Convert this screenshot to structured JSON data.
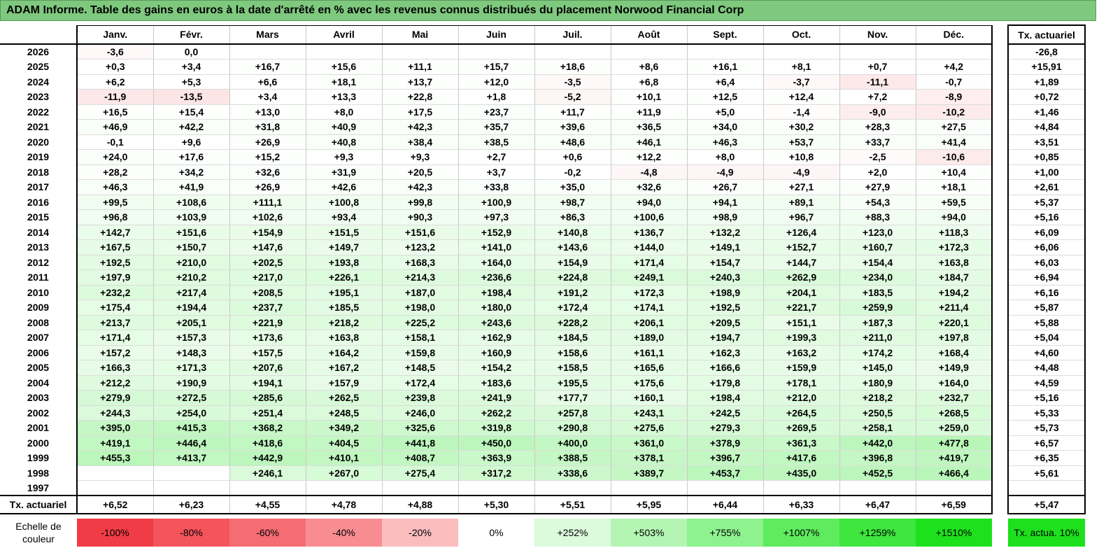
{
  "title": "ADAM Informe. Table des gains en euros à la date d'arrêté en % avec les revenus connus distribués du placement Norwood Financial Corp",
  "headers": {
    "months": [
      "Janv.",
      "Févr.",
      "Mars",
      "Avril",
      "Mai",
      "Juin",
      "Juil.",
      "Août",
      "Sept.",
      "Oct.",
      "Nov.",
      "Déc."
    ],
    "tx": "Tx. actuariel"
  },
  "rows": [
    {
      "year": "2026",
      "values": [
        "-3,6",
        "0,0",
        "",
        "",
        "",
        "",
        "",
        "",
        "",
        "",
        "",
        ""
      ],
      "tx": "-26,8"
    },
    {
      "year": "2025",
      "values": [
        "+0,3",
        "+3,4",
        "+16,7",
        "+15,6",
        "+11,1",
        "+15,7",
        "+18,6",
        "+8,6",
        "+16,1",
        "+8,1",
        "+0,7",
        "+4,2"
      ],
      "tx": "+15,91"
    },
    {
      "year": "2024",
      "values": [
        "+6,2",
        "+5,3",
        "+6,6",
        "+18,1",
        "+13,7",
        "+12,0",
        "-3,5",
        "+6,8",
        "+6,4",
        "-3,7",
        "-11,1",
        "-0,7"
      ],
      "tx": "+1,89"
    },
    {
      "year": "2023",
      "values": [
        "-11,9",
        "-13,5",
        "+3,4",
        "+13,3",
        "+22,8",
        "+1,8",
        "-5,2",
        "+10,1",
        "+12,5",
        "+12,4",
        "+7,2",
        "-8,9"
      ],
      "tx": "+0,72"
    },
    {
      "year": "2022",
      "values": [
        "+16,5",
        "+15,4",
        "+13,0",
        "+8,0",
        "+17,5",
        "+23,7",
        "+11,7",
        "+11,9",
        "+5,0",
        "-1,4",
        "-9,0",
        "-10,2"
      ],
      "tx": "+1,46"
    },
    {
      "year": "2021",
      "values": [
        "+46,9",
        "+42,2",
        "+31,8",
        "+40,9",
        "+42,3",
        "+35,7",
        "+39,6",
        "+36,5",
        "+34,0",
        "+30,2",
        "+28,3",
        "+27,5"
      ],
      "tx": "+4,84"
    },
    {
      "year": "2020",
      "values": [
        "-0,1",
        "+9,6",
        "+26,9",
        "+40,8",
        "+38,4",
        "+38,5",
        "+48,6",
        "+46,1",
        "+46,3",
        "+53,7",
        "+33,7",
        "+41,4"
      ],
      "tx": "+3,51"
    },
    {
      "year": "2019",
      "values": [
        "+24,0",
        "+17,6",
        "+15,2",
        "+9,3",
        "+9,3",
        "+2,7",
        "+0,6",
        "+12,2",
        "+8,0",
        "+10,8",
        "-2,5",
        "-10,6"
      ],
      "tx": "+0,85"
    },
    {
      "year": "2018",
      "values": [
        "+28,2",
        "+34,2",
        "+32,6",
        "+31,9",
        "+20,5",
        "+3,7",
        "-0,2",
        "-4,8",
        "-4,9",
        "-4,9",
        "+2,0",
        "+10,4"
      ],
      "tx": "+1,00"
    },
    {
      "year": "2017",
      "values": [
        "+46,3",
        "+41,9",
        "+26,9",
        "+42,6",
        "+42,3",
        "+33,8",
        "+35,0",
        "+32,6",
        "+26,7",
        "+27,1",
        "+27,9",
        "+18,1"
      ],
      "tx": "+2,61"
    },
    {
      "year": "2016",
      "values": [
        "+99,5",
        "+108,6",
        "+111,1",
        "+100,8",
        "+99,8",
        "+100,9",
        "+98,7",
        "+94,0",
        "+94,1",
        "+89,1",
        "+54,3",
        "+59,5"
      ],
      "tx": "+5,37"
    },
    {
      "year": "2015",
      "values": [
        "+96,8",
        "+103,9",
        "+102,6",
        "+93,4",
        "+90,3",
        "+97,3",
        "+86,3",
        "+100,6",
        "+98,9",
        "+96,7",
        "+88,3",
        "+94,0"
      ],
      "tx": "+5,16"
    },
    {
      "year": "2014",
      "values": [
        "+142,7",
        "+151,6",
        "+154,9",
        "+151,5",
        "+151,6",
        "+152,9",
        "+140,8",
        "+136,7",
        "+132,2",
        "+126,4",
        "+123,0",
        "+118,3"
      ],
      "tx": "+6,09"
    },
    {
      "year": "2013",
      "values": [
        "+167,5",
        "+150,7",
        "+147,6",
        "+149,7",
        "+123,2",
        "+141,0",
        "+143,6",
        "+144,0",
        "+149,1",
        "+152,7",
        "+160,7",
        "+172,3"
      ],
      "tx": "+6,06"
    },
    {
      "year": "2012",
      "values": [
        "+192,5",
        "+210,0",
        "+202,5",
        "+193,8",
        "+168,3",
        "+164,0",
        "+154,9",
        "+171,4",
        "+154,7",
        "+144,7",
        "+154,4",
        "+163,8"
      ],
      "tx": "+6,03"
    },
    {
      "year": "2011",
      "values": [
        "+197,9",
        "+210,2",
        "+217,0",
        "+226,1",
        "+214,3",
        "+236,6",
        "+224,8",
        "+249,1",
        "+240,3",
        "+262,9",
        "+234,0",
        "+184,7"
      ],
      "tx": "+6,94"
    },
    {
      "year": "2010",
      "values": [
        "+232,2",
        "+217,4",
        "+208,5",
        "+195,1",
        "+187,0",
        "+198,4",
        "+191,2",
        "+172,3",
        "+198,9",
        "+204,1",
        "+183,5",
        "+194,2"
      ],
      "tx": "+6,16"
    },
    {
      "year": "2009",
      "values": [
        "+175,4",
        "+194,4",
        "+237,7",
        "+185,5",
        "+198,0",
        "+180,0",
        "+172,4",
        "+174,1",
        "+192,5",
        "+221,7",
        "+259,9",
        "+211,4"
      ],
      "tx": "+5,87"
    },
    {
      "year": "2008",
      "values": [
        "+213,7",
        "+205,1",
        "+221,9",
        "+218,2",
        "+225,2",
        "+243,6",
        "+228,2",
        "+206,1",
        "+209,5",
        "+151,1",
        "+187,3",
        "+220,1"
      ],
      "tx": "+5,88"
    },
    {
      "year": "2007",
      "values": [
        "+171,4",
        "+157,3",
        "+173,6",
        "+163,8",
        "+158,1",
        "+162,9",
        "+184,5",
        "+189,0",
        "+194,7",
        "+199,3",
        "+211,0",
        "+197,8"
      ],
      "tx": "+5,04"
    },
    {
      "year": "2006",
      "values": [
        "+157,2",
        "+148,3",
        "+157,5",
        "+164,2",
        "+159,8",
        "+160,9",
        "+158,6",
        "+161,1",
        "+162,3",
        "+163,2",
        "+174,2",
        "+168,4"
      ],
      "tx": "+4,60"
    },
    {
      "year": "2005",
      "values": [
        "+166,3",
        "+171,3",
        "+207,6",
        "+167,2",
        "+148,5",
        "+154,2",
        "+158,5",
        "+165,6",
        "+166,6",
        "+159,9",
        "+145,0",
        "+149,9"
      ],
      "tx": "+4,48"
    },
    {
      "year": "2004",
      "values": [
        "+212,2",
        "+190,9",
        "+194,1",
        "+157,9",
        "+172,4",
        "+183,6",
        "+195,5",
        "+175,6",
        "+179,8",
        "+178,1",
        "+180,9",
        "+164,0"
      ],
      "tx": "+4,59"
    },
    {
      "year": "2003",
      "values": [
        "+279,9",
        "+272,5",
        "+285,6",
        "+262,5",
        "+239,8",
        "+241,9",
        "+177,7",
        "+160,1",
        "+198,4",
        "+212,0",
        "+218,2",
        "+232,7"
      ],
      "tx": "+5,16"
    },
    {
      "year": "2002",
      "values": [
        "+244,3",
        "+254,0",
        "+251,4",
        "+248,5",
        "+246,0",
        "+262,2",
        "+257,8",
        "+243,1",
        "+242,5",
        "+264,5",
        "+250,5",
        "+268,5"
      ],
      "tx": "+5,33"
    },
    {
      "year": "2001",
      "values": [
        "+395,0",
        "+415,3",
        "+368,2",
        "+349,2",
        "+325,6",
        "+319,8",
        "+290,8",
        "+275,6",
        "+279,3",
        "+269,5",
        "+258,1",
        "+259,0"
      ],
      "tx": "+5,73"
    },
    {
      "year": "2000",
      "values": [
        "+419,1",
        "+446,4",
        "+418,6",
        "+404,5",
        "+441,8",
        "+450,0",
        "+400,0",
        "+361,0",
        "+378,9",
        "+361,3",
        "+442,0",
        "+477,8"
      ],
      "tx": "+6,57"
    },
    {
      "year": "1999",
      "values": [
        "+455,3",
        "+413,7",
        "+442,9",
        "+410,1",
        "+408,7",
        "+363,9",
        "+388,5",
        "+378,1",
        "+396,7",
        "+417,6",
        "+396,8",
        "+419,7"
      ],
      "tx": "+6,35"
    },
    {
      "year": "1998",
      "values": [
        "",
        "",
        "+246,1",
        "+267,0",
        "+275,4",
        "+317,2",
        "+338,6",
        "+389,7",
        "+453,7",
        "+435,0",
        "+452,5",
        "+466,4"
      ],
      "tx": "+5,61"
    },
    {
      "year": "1997",
      "values": [
        "",
        "",
        "",
        "",
        "",
        "",
        "",
        "",
        "",
        "",
        "",
        ""
      ],
      "tx": ""
    }
  ],
  "summary": {
    "label": "Tx. actuariel",
    "values": [
      "+6,52",
      "+6,23",
      "+4,55",
      "+4,78",
      "+4,88",
      "+5,30",
      "+5,51",
      "+5,95",
      "+6,44",
      "+6,33",
      "+6,47",
      "+6,59"
    ],
    "tx": "+5,47"
  },
  "scale": {
    "label": "Echelle de couleur",
    "items": [
      {
        "text": "-100%",
        "color": "#f03c46",
        "kind": "neg"
      },
      {
        "text": "-80%",
        "color": "#f4545c",
        "kind": "neg"
      },
      {
        "text": "-60%",
        "color": "#f56c72",
        "kind": "neg"
      },
      {
        "text": "-40%",
        "color": "#f88d91",
        "kind": "neg"
      },
      {
        "text": "-20%",
        "color": "#fbbcbe",
        "kind": "neg"
      },
      {
        "text": "0%",
        "color": "#ffffff",
        "kind": "zero"
      },
      {
        "text": "+252%",
        "color": "#dcfadc",
        "kind": "pos"
      },
      {
        "text": "+503%",
        "color": "#b4f5b4",
        "kind": "pos"
      },
      {
        "text": "+755%",
        "color": "#8ef28e",
        "kind": "pos"
      },
      {
        "text": "+1007%",
        "color": "#5eeb5e",
        "kind": "pos"
      },
      {
        "text": "+1259%",
        "color": "#3ee63e",
        "kind": "pos"
      },
      {
        "text": "+1510%",
        "color": "#1ee11e",
        "kind": "pos"
      }
    ],
    "tx_label": "Tx. actua. 10%",
    "tx_color": "#1ee11e"
  },
  "colors": {
    "title_bg": "#7fc97f",
    "negative_max": "#f03c46",
    "positive_max": "#1ee11e"
  }
}
